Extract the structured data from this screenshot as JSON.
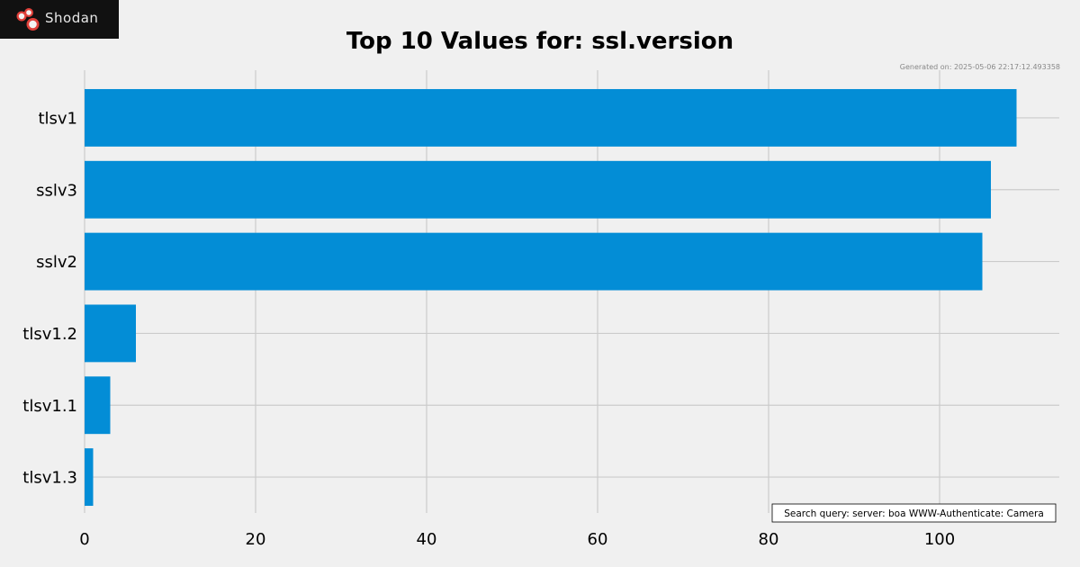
{
  "brand": {
    "logo_text": "Shodan",
    "logo_icon": "shodan-logo-icon",
    "logo_color": "#e0403a"
  },
  "chart_data": {
    "type": "bar",
    "orientation": "horizontal",
    "title": "Top 10 Values for: ssl.version",
    "generated": "Generated on: 2025-05-06 22:17:12.493358",
    "query": "Search query: server: boa WWW-Authenticate: Camera",
    "categories": [
      "tlsv1",
      "sslv3",
      "sslv2",
      "tlsv1.2",
      "tlsv1.1",
      "tlsv1.3"
    ],
    "values": [
      109,
      106,
      105,
      6,
      3,
      1
    ],
    "xlim": [
      0,
      114
    ],
    "xticks": [
      0,
      20,
      40,
      60,
      80,
      100
    ],
    "grid": true,
    "bar_color": "#038dd6",
    "grid_color": "#cbcbcb",
    "background": "#f0f0f0"
  }
}
